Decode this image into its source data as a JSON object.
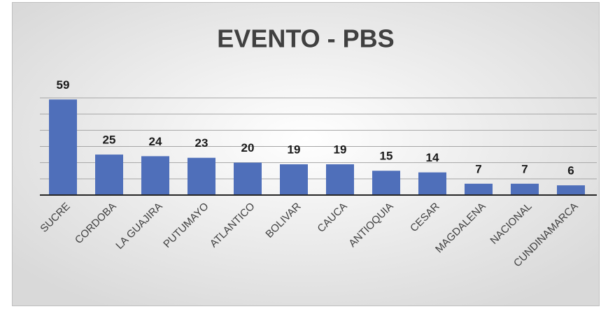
{
  "chart_data": {
    "type": "bar",
    "title": "EVENTO - PBS",
    "categories": [
      "SUCRE",
      "CORDOBA",
      "LA GUAJIRA",
      "PUTUMAYO",
      "ATLANTICO",
      "BOLIVAR",
      "CAUCA",
      "ANTIOQUIA",
      "CESAR",
      "MAGDALENA",
      "NACIONAL",
      "CUNDINAMARCA"
    ],
    "values": [
      59,
      25,
      24,
      23,
      20,
      19,
      19,
      15,
      14,
      7,
      7,
      6
    ],
    "color": "#4f6fba",
    "ylim": [
      0,
      60
    ],
    "yticks": [
      0,
      10,
      20,
      30,
      40,
      50,
      60
    ],
    "grid": true
  }
}
